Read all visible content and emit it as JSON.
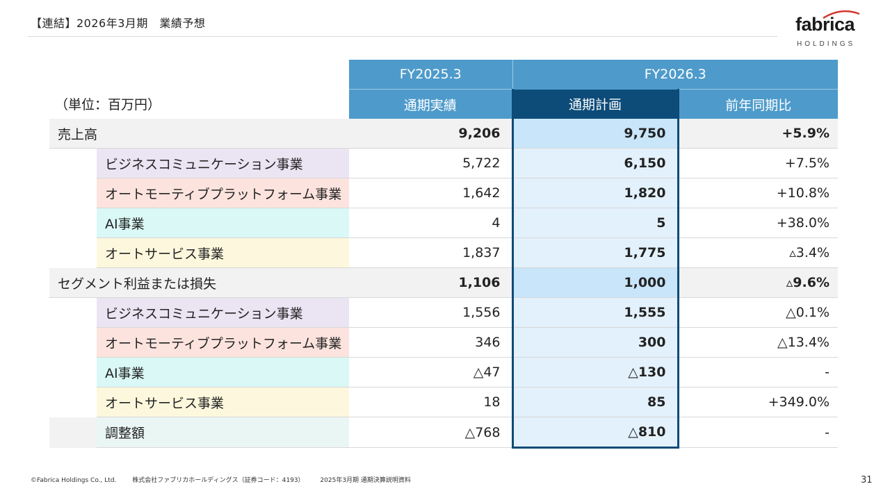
{
  "header": {
    "title": "【連結】2026年3月期　業績予想",
    "logo_text": "fabrica",
    "logo_sub": "HOLDINGS"
  },
  "table": {
    "unit": "（単位：百万円）",
    "fy_prev": "FY2025.3",
    "fy_next": "FY2026.3",
    "col_actual": "通期実績",
    "col_plan": "通期計画",
    "col_yoy": "前年同期比",
    "rows": [
      {
        "label": "売上高",
        "actual": "9,206",
        "plan": "9,750",
        "yoy": "+5.9%"
      },
      {
        "label": "ビジネスコミュニケーション事業",
        "actual": "5,722",
        "plan": "6,150",
        "yoy": "+7.5%"
      },
      {
        "label": "オートモーティブプラットフォーム事業",
        "actual": "1,642",
        "plan": "1,820",
        "yoy": "+10.8%"
      },
      {
        "label": "AI事業",
        "actual": "4",
        "plan": "5",
        "yoy": "+38.0%"
      },
      {
        "label": "オートサービス事業",
        "actual": "1,837",
        "plan": "1,775",
        "yoy": "▵3.4%"
      },
      {
        "label": "セグメント利益または損失",
        "actual": "1,106",
        "plan": "1,000",
        "yoy": "▵9.6%"
      },
      {
        "label": "ビジネスコミュニケーション事業",
        "actual": "1,556",
        "plan": "1,555",
        "yoy": "△0.1%"
      },
      {
        "label": "オートモーティブプラットフォーム事業",
        "actual": "346",
        "plan": "300",
        "yoy": "△13.4%"
      },
      {
        "label": "AI事業",
        "actual": "△47",
        "plan": "△130",
        "yoy": "-"
      },
      {
        "label": "オートサービス事業",
        "actual": "18",
        "plan": "85",
        "yoy": "+349.0%"
      },
      {
        "label": "調整額",
        "actual": "△768",
        "plan": "△810",
        "yoy": "-"
      }
    ]
  },
  "footer": {
    "copyright": "©Fabrica Holdings Co., Ltd.",
    "company": "株式会社ファブリカホールディングス（証券コード：4193）",
    "doc": "2025年3月期 通期決算説明資料",
    "page": "31"
  },
  "colors": {
    "header_blue": "#4e9bcb",
    "header_dark": "#0d4b78",
    "plan_highlight": "#c8e5fa",
    "segment_business_communication": "#ebe4f3",
    "segment_automotive": "#fce3de",
    "segment_ai": "#d9f8f6",
    "segment_auto_service": "#fdf8dd",
    "adjustment": "#eaf6f4"
  }
}
